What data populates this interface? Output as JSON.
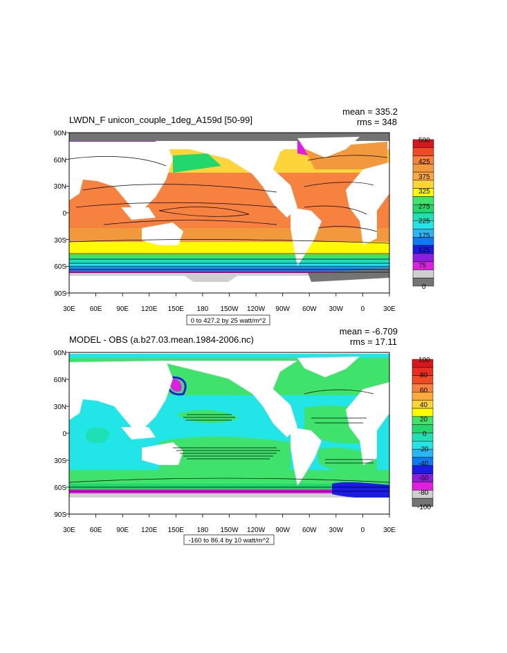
{
  "panels": [
    {
      "title": "LWDN_F unicon_couple_1deg_A159d [50-99]",
      "mean": "mean = 335.2",
      "rms": "rms = 348",
      "contour_info": "0 to 427.2 by 25 watt/m^2",
      "colorbar_labels": [
        "500",
        "425",
        "375",
        "325",
        "275",
        "225",
        "175",
        "125",
        "75",
        "0"
      ],
      "colorbar_colors": [
        "#d7161d",
        "#f04a22",
        "#f7823f",
        "#f1993c",
        "#fca93f",
        "#fdd53a",
        "#fff901",
        "#3fe36b",
        "#22d86d",
        "#1ee0b4",
        "#22e5e7",
        "#27b7f4",
        "#0d7cf3",
        "#1a1be6",
        "#8d1ee0",
        "#e01ee0",
        "#cfcfcf",
        "#747474"
      ]
    },
    {
      "title": "MODEL - OBS (a.b27.03.mean.1984-2006.nc)",
      "mean": "mean = -6.709",
      "rms": "rms = 17.11",
      "contour_info": "-160 to 86.4 by 10 watt/m^2",
      "colorbar_labels": [
        "100",
        "80",
        "60",
        "40",
        "20",
        "0",
        "-20",
        "-40",
        "-60",
        "-80",
        "-100"
      ],
      "colorbar_colors": [
        "#d7161d",
        "#e92e21",
        "#f04a22",
        "#f7823f",
        "#fca93f",
        "#fdd53a",
        "#fff901",
        "#3fe36b",
        "#22d86d",
        "#1ee0b4",
        "#22e5e7",
        "#27b7f4",
        "#0d7cf3",
        "#1a1be6",
        "#8d1ee0",
        "#e01ee0",
        "#cfcfcf",
        "#747474"
      ]
    }
  ],
  "lat_labels": [
    "90N",
    "60N",
    "30N",
    "0",
    "30S",
    "60S",
    "90S"
  ],
  "lon_labels": [
    "30E",
    "60E",
    "90E",
    "120E",
    "150E",
    "180",
    "150W",
    "120W",
    "90W",
    "60W",
    "30W",
    "0",
    "30E"
  ]
}
